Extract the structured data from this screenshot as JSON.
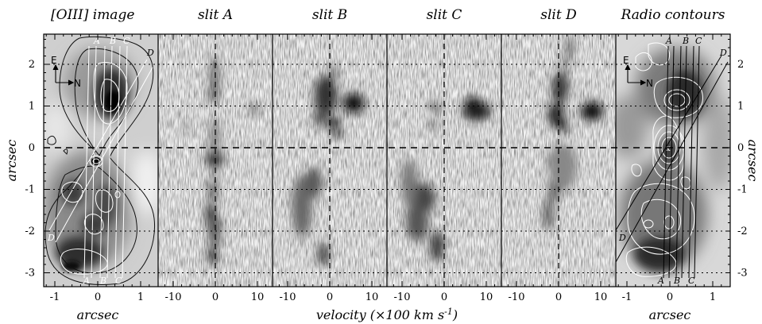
{
  "panel_titles": [
    "[OIII] image",
    "slit A",
    "slit B",
    "slit C",
    "slit D",
    "Radio contours"
  ],
  "y_axis": {
    "label": "arcsec",
    "ticks": [
      "2",
      "1",
      "0",
      "-1",
      "-2",
      "-3"
    ]
  },
  "x_axis": {
    "left_label": "arcsec",
    "middle_label": "velocity (×100 km s",
    "middle_label_exponent": "-1",
    "middle_label_close": ")",
    "right_label": "arcsec",
    "image_ticks": [
      "-1",
      "0",
      "1"
    ],
    "velocity_ticks": [
      "-10",
      "0",
      "10"
    ]
  },
  "slit_labels": [
    "A",
    "B",
    "C",
    "D"
  ],
  "compass": {
    "east": "E",
    "north": "N"
  },
  "colors": {
    "frame": "#000000",
    "contours_dark": "#111111",
    "contours_light": "#ffffff"
  }
}
